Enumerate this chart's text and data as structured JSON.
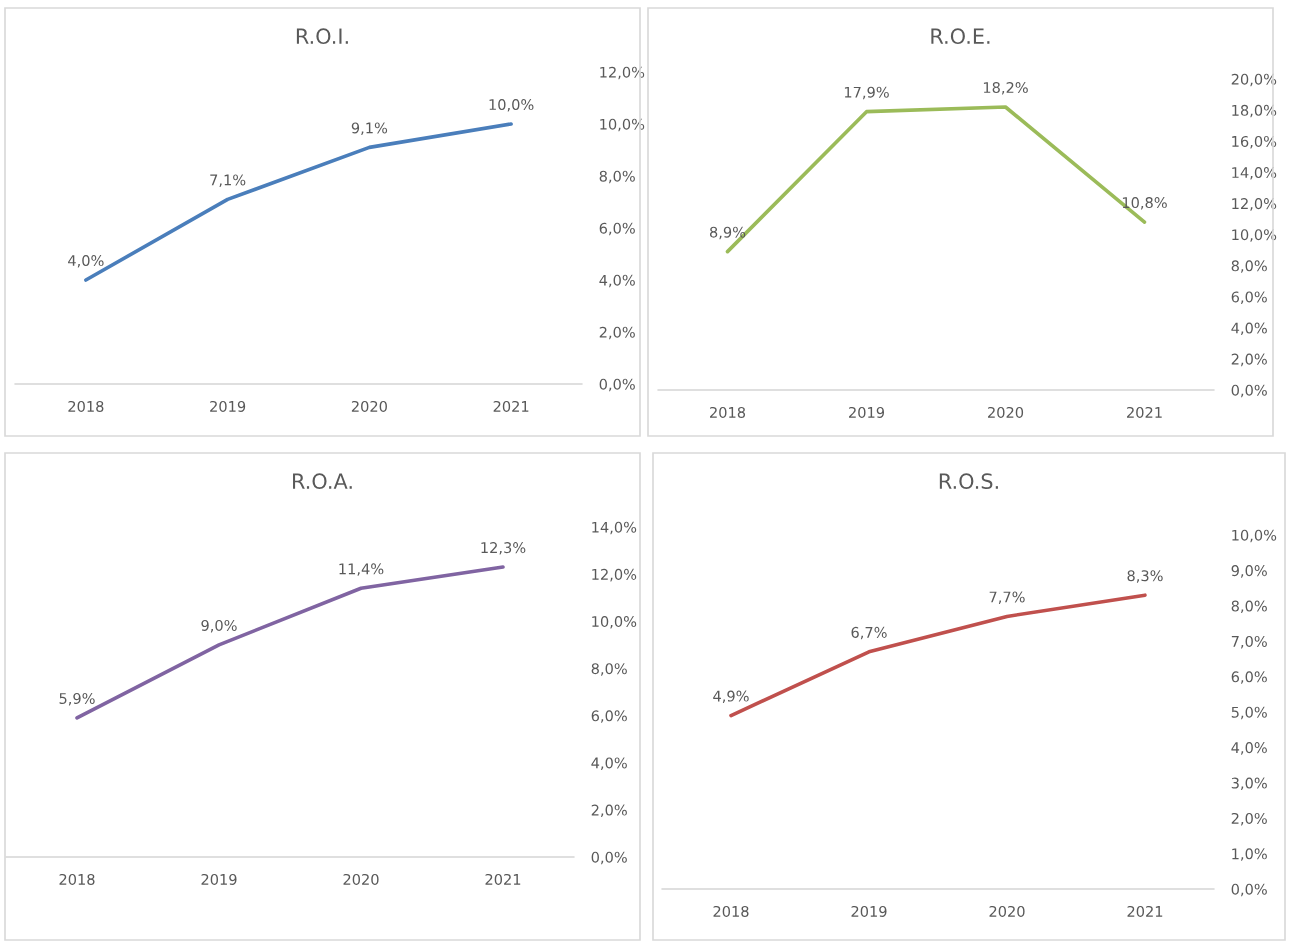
{
  "chart_data": [
    {
      "type": "line",
      "title": "R.O.I.",
      "categories": [
        "2018",
        "2019",
        "2020",
        "2021"
      ],
      "series": [
        {
          "color": "#4a7ebb",
          "values": [
            4.0,
            7.1,
            9.1,
            10.0
          ],
          "value_labels": [
            "4,0%",
            "7,1%",
            "9,1%",
            "10,0%"
          ]
        }
      ],
      "ylim": [
        0,
        12
      ],
      "yticks": [
        {
          "value": 0,
          "label": "0,0%"
        },
        {
          "value": 2,
          "label": "2,0%"
        },
        {
          "value": 4,
          "label": "4,0%"
        },
        {
          "value": 6,
          "label": "6,0%"
        },
        {
          "value": 8,
          "label": "8,0%"
        },
        {
          "value": 10,
          "label": "10,0%"
        },
        {
          "value": 12,
          "label": "12,0%"
        }
      ],
      "grid": false,
      "legend": false
    },
    {
      "type": "line",
      "title": "R.O.E.",
      "categories": [
        "2018",
        "2019",
        "2020",
        "2021"
      ],
      "series": [
        {
          "color": "#9bbb59",
          "values": [
            8.9,
            17.9,
            18.2,
            10.8
          ],
          "value_labels": [
            "8,9%",
            "17,9%",
            "18,2%",
            "10,8%"
          ]
        }
      ],
      "ylim": [
        0,
        20
      ],
      "yticks": [
        {
          "value": 0,
          "label": "0,0%"
        },
        {
          "value": 2,
          "label": "2,0%"
        },
        {
          "value": 4,
          "label": "4,0%"
        },
        {
          "value": 6,
          "label": "6,0%"
        },
        {
          "value": 8,
          "label": "8,0%"
        },
        {
          "value": 10,
          "label": "10,0%"
        },
        {
          "value": 12,
          "label": "12,0%"
        },
        {
          "value": 14,
          "label": "14,0%"
        },
        {
          "value": 16,
          "label": "16,0%"
        },
        {
          "value": 18,
          "label": "18,0%"
        },
        {
          "value": 20,
          "label": "20,0%"
        }
      ],
      "grid": false,
      "legend": false
    },
    {
      "type": "line",
      "title": "R.O.A.",
      "categories": [
        "2018",
        "2019",
        "2020",
        "2021"
      ],
      "series": [
        {
          "color": "#8064a2",
          "values": [
            5.9,
            9.0,
            11.4,
            12.3
          ],
          "value_labels": [
            "5,9%",
            "9,0%",
            "11,4%",
            "12,3%"
          ]
        }
      ],
      "ylim": [
        0,
        14
      ],
      "yticks": [
        {
          "value": 0,
          "label": "0,0%"
        },
        {
          "value": 2,
          "label": "2,0%"
        },
        {
          "value": 4,
          "label": "4,0%"
        },
        {
          "value": 6,
          "label": "6,0%"
        },
        {
          "value": 8,
          "label": "8,0%"
        },
        {
          "value": 10,
          "label": "10,0%"
        },
        {
          "value": 12,
          "label": "12,0%"
        },
        {
          "value": 14,
          "label": "14,0%"
        }
      ],
      "grid": false,
      "legend": false
    },
    {
      "type": "line",
      "title": "R.O.S.",
      "categories": [
        "2018",
        "2019",
        "2020",
        "2021"
      ],
      "series": [
        {
          "color": "#c0504d",
          "values": [
            4.9,
            6.7,
            7.7,
            8.3
          ],
          "value_labels": [
            "4,9%",
            "6,7%",
            "7,7%",
            "8,3%"
          ]
        }
      ],
      "ylim": [
        0,
        10
      ],
      "yticks": [
        {
          "value": 0,
          "label": "0,0%"
        },
        {
          "value": 1,
          "label": "1,0%"
        },
        {
          "value": 2,
          "label": "2,0%"
        },
        {
          "value": 3,
          "label": "3,0%"
        },
        {
          "value": 4,
          "label": "4,0%"
        },
        {
          "value": 5,
          "label": "5,0%"
        },
        {
          "value": 6,
          "label": "6,0%"
        },
        {
          "value": 7,
          "label": "7,0%"
        },
        {
          "value": 8,
          "label": "8,0%"
        },
        {
          "value": 9,
          "label": "9,0%"
        },
        {
          "value": 10,
          "label": "10,0%"
        }
      ],
      "grid": false,
      "legend": false
    }
  ]
}
